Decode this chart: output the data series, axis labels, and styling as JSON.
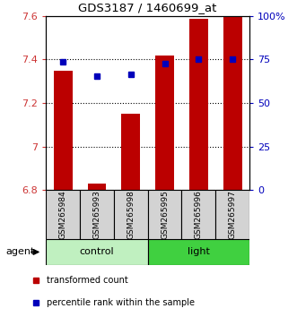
{
  "title": "GDS3187 / 1460699_at",
  "samples": [
    "GSM265984",
    "GSM265993",
    "GSM265998",
    "GSM265995",
    "GSM265996",
    "GSM265997"
  ],
  "red_bar_values": [
    7.35,
    6.83,
    7.15,
    7.42,
    7.585,
    7.6
  ],
  "blue_dot_values": [
    7.39,
    7.325,
    7.33,
    7.382,
    7.402,
    7.402
  ],
  "ylim_left": [
    6.8,
    7.6
  ],
  "ylim_right": [
    0,
    100
  ],
  "yticks_left": [
    6.8,
    7.0,
    7.2,
    7.4,
    7.6
  ],
  "ytick_labels_left": [
    "6.8",
    "7",
    "7.2",
    "7.4",
    "7.6"
  ],
  "yticks_right": [
    0,
    25,
    50,
    75,
    100
  ],
  "ytick_labels_right": [
    "0",
    "25",
    "50",
    "75",
    "100%"
  ],
  "groups": [
    {
      "label": "control",
      "samples_count": 3,
      "color": "#c0f0c0"
    },
    {
      "label": "light",
      "samples_count": 3,
      "color": "#40d040"
    }
  ],
  "red_color": "#bb0000",
  "blue_color": "#0000bb",
  "bar_bottom": 6.8,
  "legend_items": [
    {
      "label": "transformed count",
      "color": "#bb0000"
    },
    {
      "label": "percentile rank within the sample",
      "color": "#0000bb"
    }
  ],
  "agent_label": "agent"
}
